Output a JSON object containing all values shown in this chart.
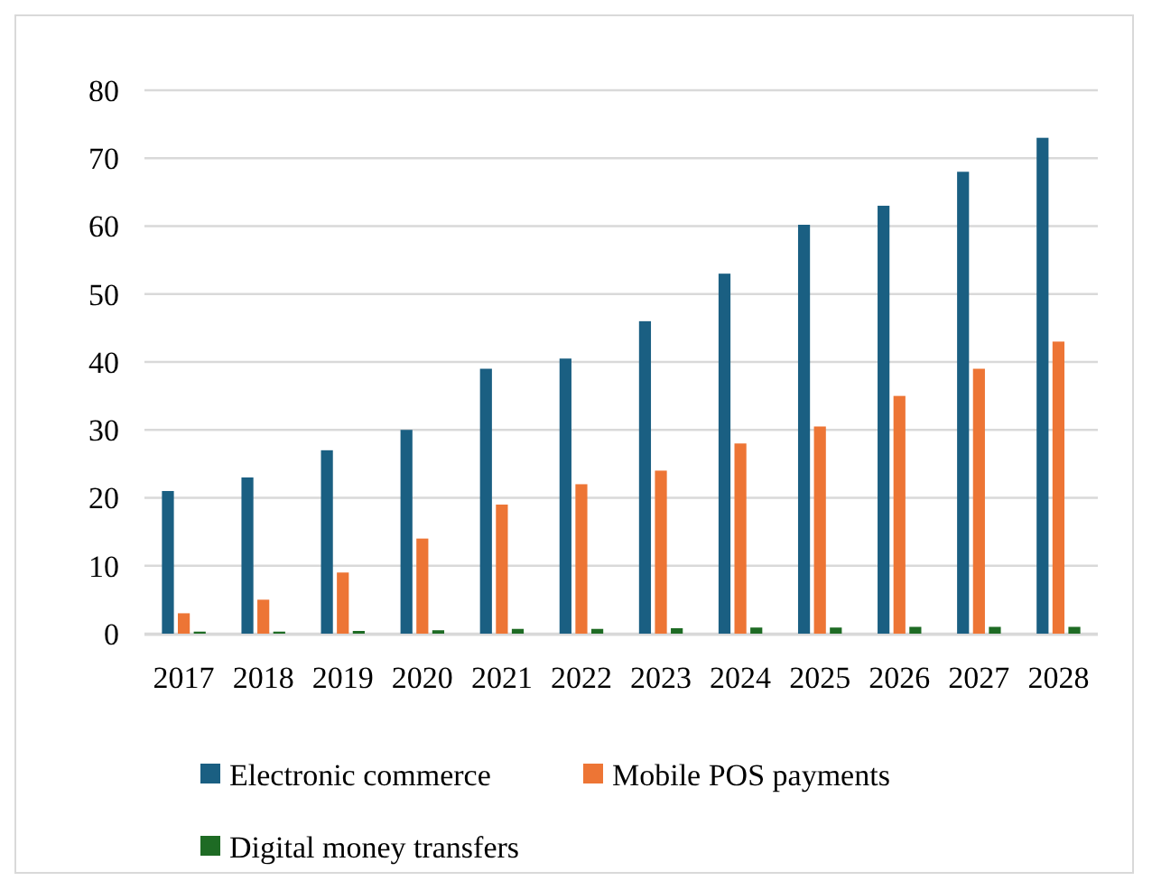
{
  "chart_data": {
    "type": "bar",
    "categories": [
      "2017",
      "2018",
      "2019",
      "2020",
      "2021",
      "2022",
      "2023",
      "2024",
      "2025",
      "2026",
      "2027",
      "2028"
    ],
    "series": [
      {
        "name": "Electronic commerce",
        "color": "#1a5f82",
        "values": [
          21,
          23,
          27,
          30,
          39,
          40.5,
          46,
          53,
          60.2,
          63,
          68,
          73
        ]
      },
      {
        "name": "Mobile POS payments",
        "color": "#ed7535",
        "values": [
          3,
          5,
          9,
          14,
          19,
          22,
          24,
          28,
          30.5,
          35,
          39,
          43
        ]
      },
      {
        "name": "Digital money transfers",
        "color": "#1e6b24",
        "values": [
          0.3,
          0.3,
          0.4,
          0.5,
          0.7,
          0.7,
          0.8,
          0.9,
          0.9,
          1,
          1,
          1
        ]
      }
    ],
    "ylim": [
      0,
      80
    ],
    "yticks": [
      0,
      10,
      20,
      30,
      40,
      50,
      60,
      70,
      80
    ],
    "grid": "y",
    "legend": "bottom"
  }
}
